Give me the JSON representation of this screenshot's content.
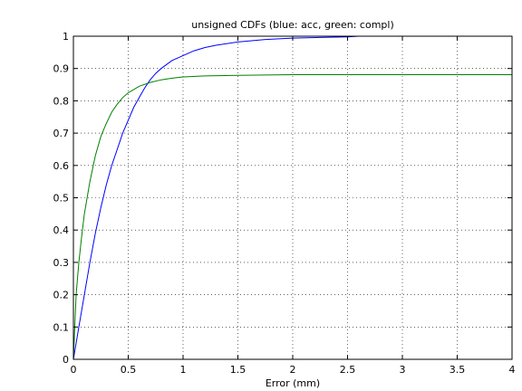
{
  "chart_data": {
    "type": "line",
    "title": "unsigned CDFs (blue: acc, green: compl)",
    "xlabel": "Error (mm)",
    "ylabel": "",
    "xlim": [
      0,
      4
    ],
    "ylim": [
      0,
      1
    ],
    "xticks": [
      0,
      0.5,
      1,
      1.5,
      2,
      2.5,
      3,
      3.5,
      4
    ],
    "xtick_labels": [
      "0",
      "0.5",
      "1",
      "1.5",
      "2",
      "2.5",
      "3",
      "3.5",
      "4"
    ],
    "yticks": [
      0,
      0.1,
      0.2,
      0.3,
      0.4,
      0.5,
      0.6,
      0.7,
      0.8,
      0.9,
      1
    ],
    "ytick_labels": [
      "0",
      "0.1",
      "0.2",
      "0.3",
      "0.4",
      "0.5",
      "0.6",
      "0.7",
      "0.8",
      "0.9",
      "1"
    ],
    "grid": true,
    "series": [
      {
        "color": "#0000ff",
        "x": [
          0,
          0.05,
          0.1,
          0.15,
          0.2,
          0.25,
          0.3,
          0.35,
          0.4,
          0.45,
          0.5,
          0.55,
          0.6,
          0.65,
          0.7,
          0.75,
          0.8,
          0.9,
          1.0,
          1.1,
          1.2,
          1.3,
          1.5,
          1.75,
          2.0,
          2.25,
          2.5,
          2.6,
          3.0,
          3.5,
          4.0
        ],
        "y": [
          0,
          0.1,
          0.2,
          0.3,
          0.39,
          0.47,
          0.54,
          0.6,
          0.65,
          0.7,
          0.74,
          0.78,
          0.81,
          0.84,
          0.865,
          0.885,
          0.9,
          0.925,
          0.94,
          0.955,
          0.965,
          0.972,
          0.982,
          0.99,
          0.994,
          0.996,
          0.998,
          1.0,
          1.0,
          1.0,
          1.0
        ]
      },
      {
        "color": "#008000",
        "x": [
          0,
          0.025,
          0.05,
          0.075,
          0.1,
          0.15,
          0.2,
          0.25,
          0.3,
          0.35,
          0.4,
          0.45,
          0.5,
          0.55,
          0.6,
          0.7,
          0.8,
          0.9,
          1.0,
          1.2,
          1.5,
          2.0,
          2.5,
          3.0,
          3.5,
          4.0
        ],
        "y": [
          0,
          0.2,
          0.3,
          0.38,
          0.45,
          0.55,
          0.63,
          0.69,
          0.73,
          0.765,
          0.79,
          0.81,
          0.825,
          0.835,
          0.845,
          0.857,
          0.865,
          0.87,
          0.874,
          0.877,
          0.879,
          0.881,
          0.881,
          0.881,
          0.881,
          0.881
        ]
      }
    ]
  }
}
